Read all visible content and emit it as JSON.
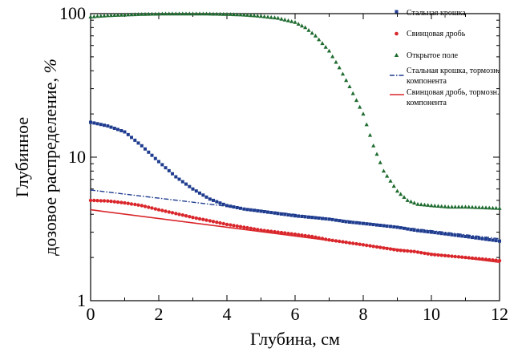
{
  "chart_data": {
    "type": "scatter",
    "xlabel": "Глубина, см",
    "ylabel_line1": "Глубинное",
    "ylabel_line2_main": "дозовое распределение, ",
    "ylabel_line2_unit": "%",
    "x_scale": "linear",
    "y_scale": "log",
    "xlim": [
      0,
      12
    ],
    "ylim": [
      1,
      100
    ],
    "x_ticks": [
      0,
      2,
      4,
      6,
      8,
      10,
      12
    ],
    "x_tick_labels": [
      "0",
      "2",
      "4",
      "6",
      "8",
      "10",
      "12"
    ],
    "y_ticks": [
      1,
      10,
      100
    ],
    "y_tick_labels": [
      "1",
      "10",
      "100"
    ],
    "grid": false,
    "legend_position": "top-right",
    "series": [
      {
        "name": "Стальная крошка",
        "style": "square-markers",
        "color": "#1f3c8f",
        "x": [
          0,
          0.5,
          1,
          1.5,
          2,
          2.5,
          3,
          3.5,
          4,
          4.5,
          5,
          5.5,
          6,
          6.5,
          7,
          7.5,
          8,
          8.5,
          9,
          9.5,
          10,
          10.5,
          11,
          11.5,
          12
        ],
        "y": [
          17.5,
          16.5,
          15.0,
          12.0,
          9.3,
          7.3,
          6.0,
          5.1,
          4.6,
          4.35,
          4.2,
          4.05,
          3.9,
          3.8,
          3.7,
          3.55,
          3.45,
          3.35,
          3.25,
          3.1,
          3.0,
          2.9,
          2.8,
          2.7,
          2.6
        ]
      },
      {
        "name": "Свинцовая дробь",
        "style": "circle-markers",
        "color": "#d9262b",
        "x": [
          0,
          0.5,
          1,
          1.5,
          2,
          2.5,
          3,
          3.5,
          4,
          4.5,
          5,
          5.5,
          6,
          6.5,
          7,
          7.5,
          8,
          8.5,
          9,
          9.5,
          10,
          10.5,
          11,
          11.5,
          12
        ],
        "y": [
          5.0,
          4.95,
          4.8,
          4.6,
          4.3,
          4.05,
          3.8,
          3.6,
          3.4,
          3.25,
          3.1,
          3.0,
          2.9,
          2.8,
          2.65,
          2.55,
          2.45,
          2.35,
          2.25,
          2.2,
          2.1,
          2.05,
          2.0,
          1.95,
          1.9
        ]
      },
      {
        "name": "Открытое поле",
        "style": "triangle-markers",
        "color": "#1e6b2f",
        "x": [
          0,
          0.5,
          1,
          1.5,
          2,
          2.5,
          3,
          3.5,
          4,
          4.5,
          5,
          5.5,
          6,
          6.3,
          6.6,
          7,
          7.3,
          7.6,
          8,
          8.3,
          8.6,
          9,
          9.3,
          9.6,
          10,
          10.5,
          11,
          11.5,
          12
        ],
        "y": [
          95,
          97,
          98,
          99,
          99.5,
          99.8,
          99.8,
          99.5,
          99,
          98,
          96,
          93,
          87,
          80,
          70,
          55,
          42,
          31,
          20,
          12,
          8,
          5.8,
          5.0,
          4.7,
          4.6,
          4.5,
          4.5,
          4.45,
          4.4
        ]
      },
      {
        "name": "Стальная крошка, тормозн. компонента",
        "style": "dash-dot-line",
        "color": "#1f3c8f",
        "x": [
          0,
          12
        ],
        "y": [
          5.9,
          2.7
        ]
      },
      {
        "name": "Свинцовая дробь, тормозн. компонента",
        "style": "solid-line",
        "color": "#d9262b",
        "x": [
          0,
          12
        ],
        "y": [
          4.3,
          1.85
        ]
      }
    ]
  },
  "legend": [
    {
      "label": "Стальная крошка",
      "style": "square-markers",
      "color": "#1f3c8f"
    },
    {
      "label": "Свинцовая дробь",
      "style": "circle-markers",
      "color": "#d9262b"
    },
    {
      "label": "Открытое поле",
      "style": "triangle-markers",
      "color": "#1e6b2f"
    },
    {
      "label_line1": "Стальная крошка, тормозн.",
      "label_line2": "компонента",
      "style": "dash-dot-line",
      "color": "#1f3c8f"
    },
    {
      "label_line1": "Свинцовая дробь, тормозн.",
      "label_line2": "компонента",
      "style": "solid-line",
      "color": "#d9262b"
    }
  ]
}
